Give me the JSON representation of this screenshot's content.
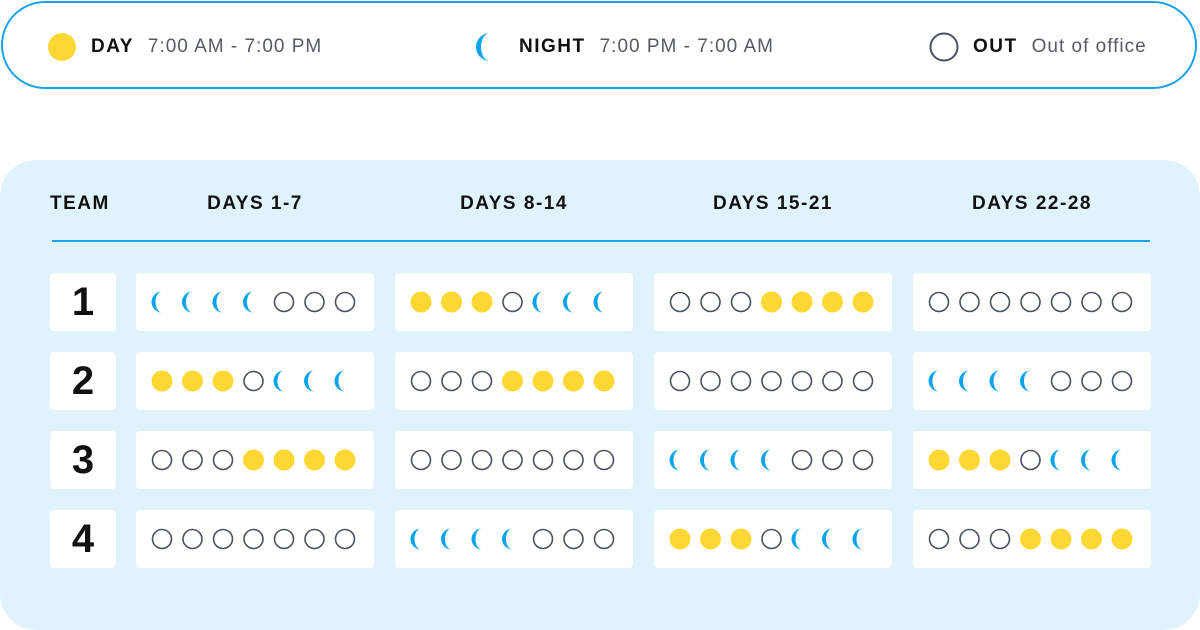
{
  "legend": [
    {
      "key": "day",
      "name": "DAY",
      "desc": "7:00 AM - 7:00 PM",
      "icon": "sun-dot-icon"
    },
    {
      "key": "night",
      "name": "NIGHT",
      "desc": "7:00 PM - 7:00 AM",
      "icon": "crescent-moon-icon"
    },
    {
      "key": "out",
      "name": "OUT",
      "desc": "Out of office",
      "icon": "empty-circle-icon"
    }
  ],
  "headers": {
    "team": "TEAM",
    "periods": [
      "DAYS 1-7",
      "DAYS 8-14",
      "DAYS 15-21",
      "DAYS 22-28"
    ]
  },
  "colors": {
    "day": "#fdd835",
    "night": "#0aa3ec",
    "out_stroke": "#4a5160",
    "border": "#1aa3e8",
    "panel": "#e0f3fc"
  },
  "teams": [
    {
      "label": "1",
      "periods": [
        [
          "N",
          "N",
          "N",
          "N",
          "O",
          "O",
          "O"
        ],
        [
          "D",
          "D",
          "D",
          "O",
          "N",
          "N",
          "N"
        ],
        [
          "O",
          "O",
          "O",
          "D",
          "D",
          "D",
          "D"
        ],
        [
          "O",
          "O",
          "O",
          "O",
          "O",
          "O",
          "O"
        ]
      ]
    },
    {
      "label": "2",
      "periods": [
        [
          "D",
          "D",
          "D",
          "O",
          "N",
          "N",
          "N"
        ],
        [
          "O",
          "O",
          "O",
          "D",
          "D",
          "D",
          "D"
        ],
        [
          "O",
          "O",
          "O",
          "O",
          "O",
          "O",
          "O"
        ],
        [
          "N",
          "N",
          "N",
          "N",
          "O",
          "O",
          "O"
        ]
      ]
    },
    {
      "label": "3",
      "periods": [
        [
          "O",
          "O",
          "O",
          "D",
          "D",
          "D",
          "D"
        ],
        [
          "O",
          "O",
          "O",
          "O",
          "O",
          "O",
          "O"
        ],
        [
          "N",
          "N",
          "N",
          "N",
          "O",
          "O",
          "O"
        ],
        [
          "D",
          "D",
          "D",
          "O",
          "N",
          "N",
          "N"
        ]
      ]
    },
    {
      "label": "4",
      "periods": [
        [
          "O",
          "O",
          "O",
          "O",
          "O",
          "O",
          "O"
        ],
        [
          "N",
          "N",
          "N",
          "N",
          "O",
          "O",
          "O"
        ],
        [
          "D",
          "D",
          "D",
          "O",
          "N",
          "N",
          "N"
        ],
        [
          "O",
          "O",
          "O",
          "D",
          "D",
          "D",
          "D"
        ]
      ]
    }
  ]
}
